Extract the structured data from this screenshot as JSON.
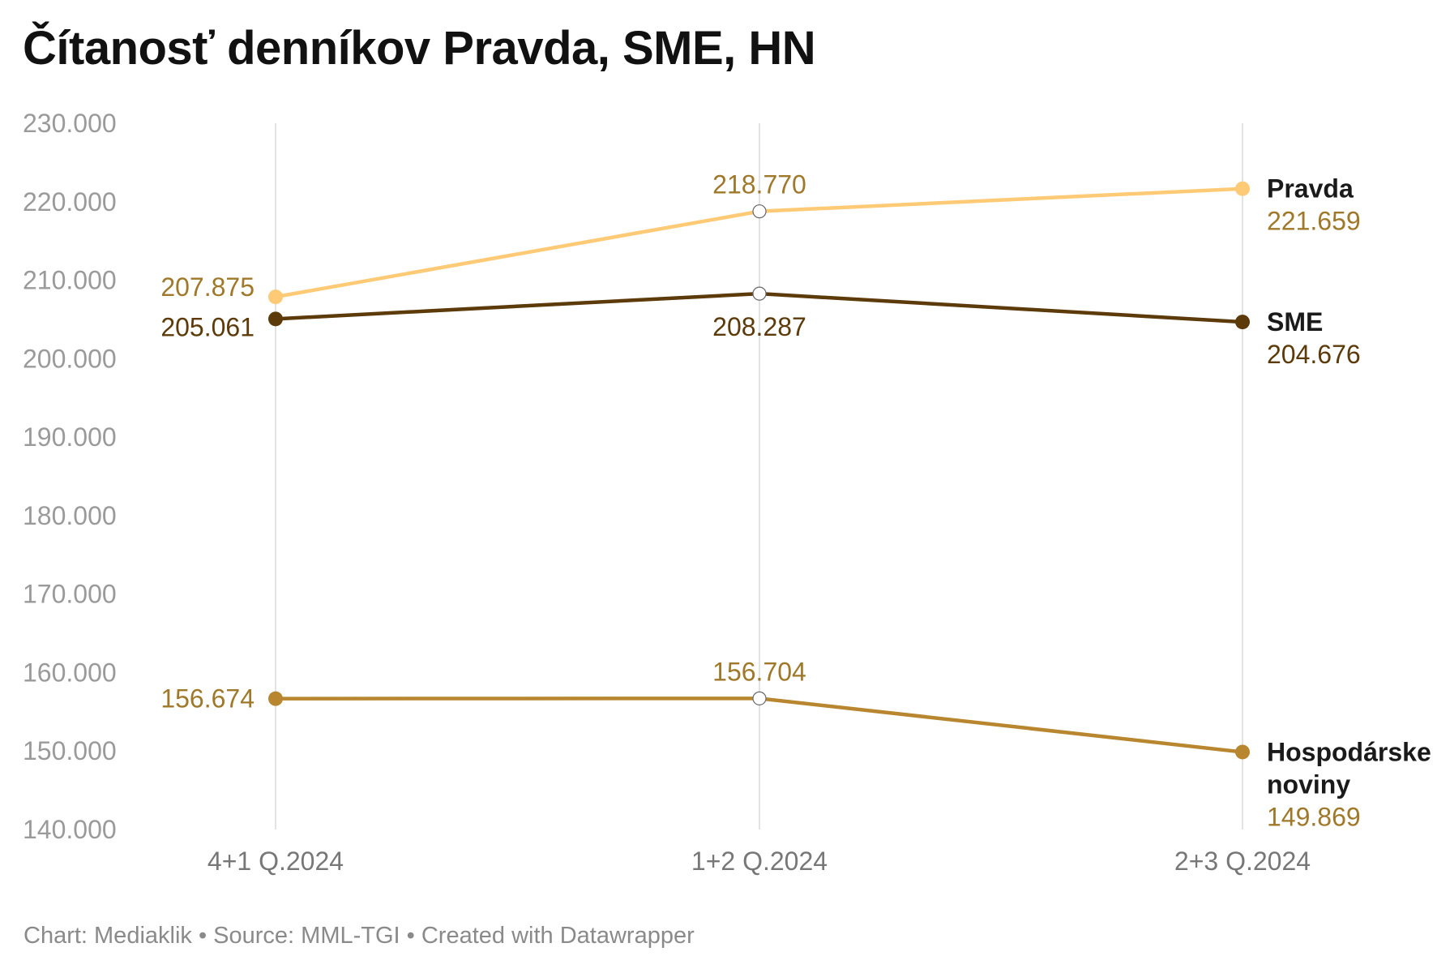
{
  "title": "Čítanosť denníkov Pravda, SME, HN",
  "footer": "Chart: Mediaklik • Source: MML-TGI • Created with Datawrapper",
  "chart_data": {
    "type": "line",
    "title": "Čítanosť denníkov Pravda, SME, HN",
    "categories": [
      "4+1 Q.2024",
      "1+2 Q.2024",
      "2+3 Q.2024"
    ],
    "ylim": [
      140000,
      230000
    ],
    "yticks": [
      {
        "value": 230000,
        "label": "230.000"
      },
      {
        "value": 220000,
        "label": "220.000"
      },
      {
        "value": 210000,
        "label": "210.000"
      },
      {
        "value": 200000,
        "label": "200.000"
      },
      {
        "value": 190000,
        "label": "190.000"
      },
      {
        "value": 180000,
        "label": "180.000"
      },
      {
        "value": 170000,
        "label": "170.000"
      },
      {
        "value": 160000,
        "label": "160.000"
      },
      {
        "value": 150000,
        "label": "150.000"
      },
      {
        "value": 140000,
        "label": "140.000"
      }
    ],
    "grid": "vertical",
    "legend": "inline-right",
    "series": [
      {
        "key": "pravda",
        "name": [
          "Pravda"
        ],
        "color": "#FFCA76",
        "label_color": "#A0782A",
        "values": [
          207875,
          218770,
          221659
        ],
        "labels": [
          "207.875",
          "218.770",
          "221.659"
        ],
        "label_pos": [
          "left-above",
          "above",
          "right"
        ]
      },
      {
        "key": "sme",
        "name": [
          "SME"
        ],
        "color": "#5C3A0A",
        "label_color": "#5C3A0A",
        "values": [
          205061,
          208287,
          204676
        ],
        "labels": [
          "205.061",
          "208.287",
          "204.676"
        ],
        "label_pos": [
          "left-below",
          "below",
          "right"
        ]
      },
      {
        "key": "hn",
        "name": [
          "Hospodárske",
          "noviny"
        ],
        "color": "#B8862E",
        "label_color": "#A0782A",
        "values": [
          156674,
          156704,
          149869
        ],
        "labels": [
          "156.674",
          "156.704",
          "149.869"
        ],
        "label_pos": [
          "left",
          "above",
          "right"
        ]
      }
    ]
  }
}
